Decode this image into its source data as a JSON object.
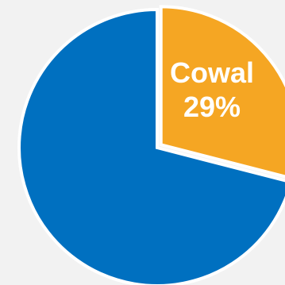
{
  "chart_data": {
    "type": "pie",
    "title": "",
    "start_angle_deg": 0,
    "direction": "clockwise",
    "slices": [
      {
        "label": "Cowal",
        "value": 29,
        "display": "29%",
        "color": "#F5A623",
        "exploded": true
      },
      {
        "label": "",
        "value": 71,
        "display": "",
        "color": "#0070C0",
        "exploded": false
      }
    ]
  },
  "colors": {
    "background": "#F2F2F2",
    "separator": "#FFFFFF"
  }
}
